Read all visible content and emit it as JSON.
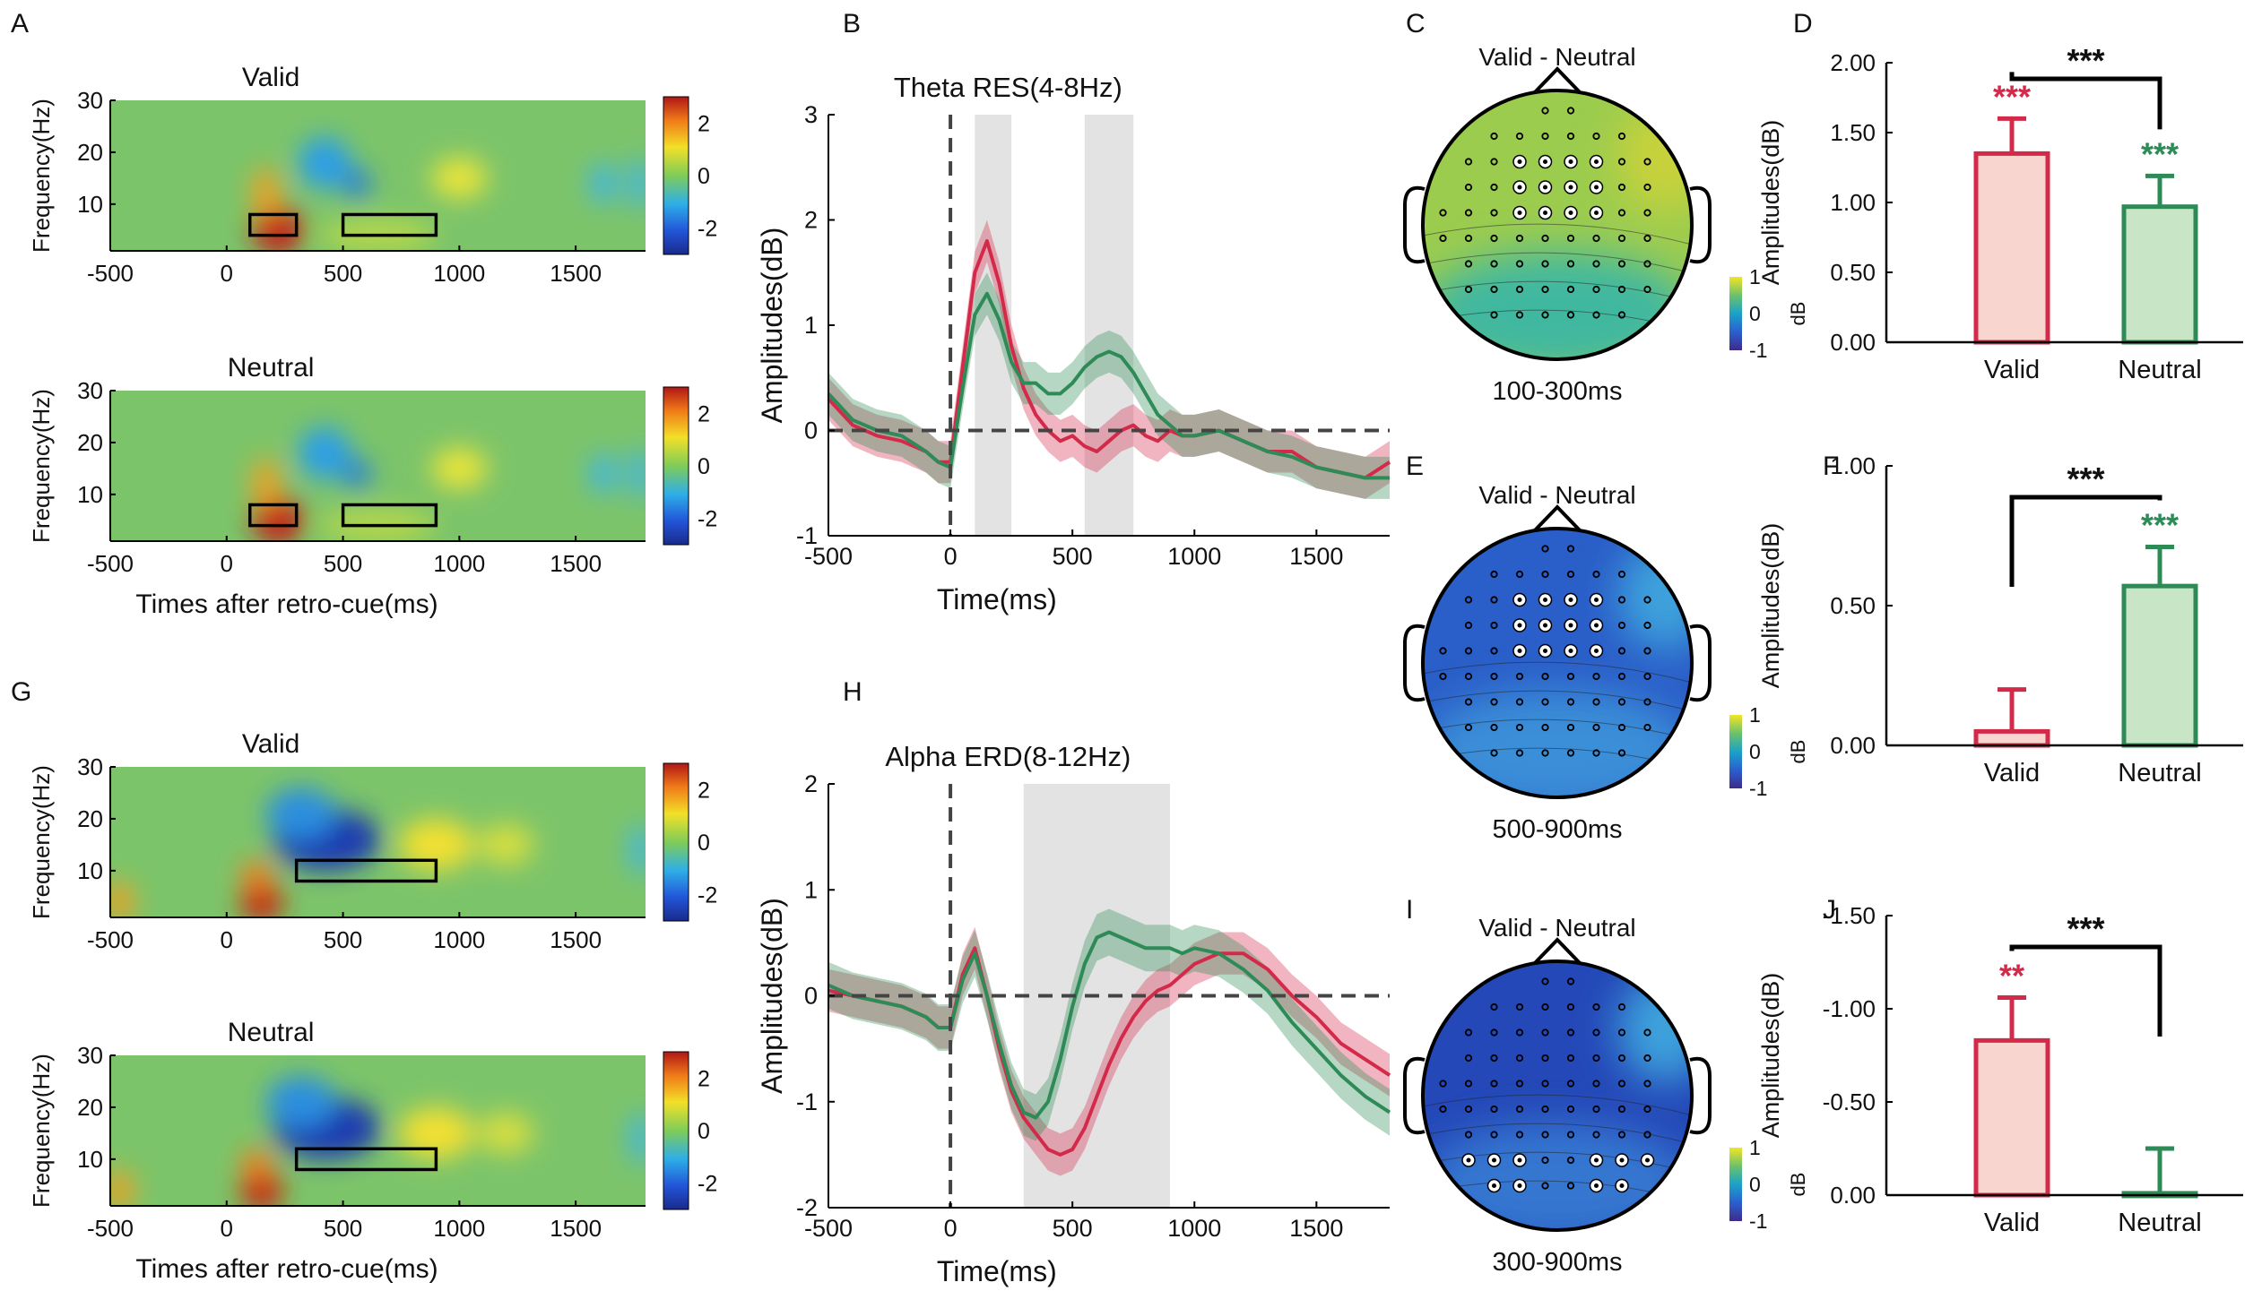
{
  "figure": {
    "panel_letters": [
      "A",
      "B",
      "C",
      "D",
      "E",
      "F",
      "G",
      "H",
      "I",
      "J"
    ],
    "tf_xlabel": "Times after retro-cue(ms)",
    "tf_ylabel": "Frequency(Hz)",
    "dB_label": "dB",
    "contrast_label": "Valid - Neutral"
  },
  "chart_data": [
    {
      "panel": "A",
      "type": "heatmap",
      "title": "Valid",
      "band": "theta",
      "xlabel": "Times after retro-cue(ms)",
      "ylabel": "Frequency(Hz)",
      "xlim": [
        -500,
        1800
      ],
      "ylim": [
        1,
        30
      ],
      "xticks": [
        "-500",
        "0",
        "500",
        "1000",
        "1500"
      ],
      "yticks": [
        "10",
        "20",
        "30"
      ],
      "colorbar": {
        "range": [
          -3,
          3
        ],
        "ticks": [
          "2",
          "0",
          "-2"
        ]
      },
      "rois": [
        {
          "t": [
            100,
            300
          ],
          "f": [
            4,
            8
          ]
        },
        {
          "t": [
            500,
            900
          ],
          "f": [
            4,
            8
          ]
        }
      ]
    },
    {
      "panel": "A",
      "type": "heatmap",
      "title": "Neutral",
      "band": "theta",
      "xlabel": "Times after retro-cue(ms)",
      "ylabel": "Frequency(Hz)",
      "xlim": [
        -500,
        1800
      ],
      "ylim": [
        1,
        30
      ],
      "xticks": [
        "-500",
        "0",
        "500",
        "1000",
        "1500"
      ],
      "yticks": [
        "10",
        "20",
        "30"
      ],
      "colorbar": {
        "range": [
          -3,
          3
        ],
        "ticks": [
          "2",
          "0",
          "-2"
        ]
      },
      "rois": [
        {
          "t": [
            100,
            300
          ],
          "f": [
            4,
            8
          ]
        },
        {
          "t": [
            500,
            900
          ],
          "f": [
            4,
            8
          ]
        }
      ]
    },
    {
      "panel": "B",
      "type": "line",
      "title": "Theta RES(4-8Hz)",
      "xlabel": "Time(ms)",
      "ylabel": "Amplitudes(dB)",
      "xlim": [
        -500,
        1800
      ],
      "ylim": [
        -1,
        3
      ],
      "xticks": [
        "-500",
        "0",
        "500",
        "1000",
        "1500"
      ],
      "yticks": [
        "-1",
        "0",
        "1",
        "2",
        "3"
      ],
      "windows": [
        [
          100,
          250
        ],
        [
          550,
          750
        ]
      ],
      "series": [
        {
          "name": "Valid",
          "color": "#d42a4a",
          "x": [
            -500,
            -400,
            -300,
            -200,
            -100,
            -50,
            0,
            50,
            100,
            150,
            200,
            250,
            300,
            350,
            400,
            450,
            500,
            550,
            600,
            650,
            700,
            750,
            800,
            850,
            900,
            950,
            1000,
            1100,
            1200,
            1300,
            1400,
            1500,
            1600,
            1700,
            1800
          ],
          "y": [
            0.3,
            0.05,
            -0.05,
            -0.1,
            -0.2,
            -0.3,
            -0.3,
            0.6,
            1.5,
            1.8,
            1.4,
            0.8,
            0.4,
            0.15,
            0.0,
            -0.1,
            -0.05,
            -0.15,
            -0.2,
            -0.1,
            0.0,
            0.05,
            -0.05,
            -0.1,
            0.0,
            -0.05,
            -0.05,
            0.0,
            -0.1,
            -0.2,
            -0.2,
            -0.35,
            -0.4,
            -0.45,
            -0.3
          ],
          "se": 0.2
        },
        {
          "name": "Neutral",
          "color": "#2e8b57",
          "x": [
            -500,
            -400,
            -300,
            -200,
            -100,
            -50,
            0,
            50,
            100,
            150,
            200,
            250,
            300,
            350,
            400,
            450,
            500,
            550,
            600,
            650,
            700,
            750,
            800,
            850,
            900,
            950,
            1000,
            1100,
            1200,
            1300,
            1400,
            1500,
            1600,
            1700,
            1800
          ],
          "y": [
            0.35,
            0.1,
            0.0,
            -0.05,
            -0.2,
            -0.3,
            -0.35,
            0.4,
            1.1,
            1.3,
            1.05,
            0.65,
            0.45,
            0.45,
            0.35,
            0.35,
            0.45,
            0.6,
            0.7,
            0.75,
            0.7,
            0.55,
            0.35,
            0.15,
            0.05,
            -0.05,
            -0.05,
            0.0,
            -0.1,
            -0.2,
            -0.25,
            -0.35,
            -0.4,
            -0.45,
            -0.45
          ],
          "se": 0.2
        }
      ]
    },
    {
      "panel": "C",
      "type": "topomap",
      "title": "Valid - Neutral",
      "window": "100-300ms",
      "colorbar": {
        "range": [
          -1,
          1
        ],
        "ticks": [
          "1",
          "0",
          "-1"
        ],
        "unit": "dB"
      },
      "level": 0.35,
      "highlighted": "fronto-central"
    },
    {
      "panel": "D",
      "type": "bar",
      "categories": [
        "Valid",
        "Neutral"
      ],
      "values": [
        1.35,
        0.97
      ],
      "errors": [
        0.25,
        0.22
      ],
      "ylabel": "Amplitudes(dB)",
      "ylim": [
        0,
        2.0
      ],
      "yticks": [
        "2.00",
        "1.50",
        "1.00",
        "0.50",
        "0.00"
      ],
      "bar_labels": [
        "***",
        "***"
      ],
      "comparison": "***"
    },
    {
      "panel": "E",
      "type": "topomap",
      "title": "Valid - Neutral",
      "window": "500-900ms",
      "colorbar": {
        "range": [
          -1,
          1
        ],
        "ticks": [
          "1",
          "0",
          "-1"
        ],
        "unit": "dB"
      },
      "level": -0.7,
      "highlighted": "fronto-central"
    },
    {
      "panel": "F",
      "type": "bar",
      "categories": [
        "Valid",
        "Neutral"
      ],
      "values": [
        0.05,
        0.57
      ],
      "errors": [
        0.15,
        0.14
      ],
      "ylabel": "Amplitudes(dB)",
      "ylim": [
        0,
        1.0
      ],
      "yticks": [
        "1.00",
        "0.50",
        "0.00"
      ],
      "bar_labels": [
        "",
        "***"
      ],
      "comparison": "***"
    },
    {
      "panel": "G",
      "type": "heatmap",
      "title": "Valid",
      "band": "alpha",
      "xlabel": "Times after retro-cue(ms)",
      "ylabel": "Frequency(Hz)",
      "xlim": [
        -500,
        1800
      ],
      "ylim": [
        1,
        30
      ],
      "xticks": [
        "-500",
        "0",
        "500",
        "1000",
        "1500"
      ],
      "yticks": [
        "10",
        "20",
        "30"
      ],
      "colorbar": {
        "range": [
          -3,
          3
        ],
        "ticks": [
          "2",
          "0",
          "-2"
        ]
      },
      "rois": [
        {
          "t": [
            300,
            900
          ],
          "f": [
            8,
            12
          ]
        }
      ]
    },
    {
      "panel": "G",
      "type": "heatmap",
      "title": "Neutral",
      "band": "alpha",
      "xlabel": "Times after retro-cue(ms)",
      "ylabel": "Frequency(Hz)",
      "xlim": [
        -500,
        1800
      ],
      "ylim": [
        1,
        30
      ],
      "xticks": [
        "-500",
        "0",
        "500",
        "1000",
        "1500"
      ],
      "yticks": [
        "10",
        "20",
        "30"
      ],
      "colorbar": {
        "range": [
          -3,
          3
        ],
        "ticks": [
          "2",
          "0",
          "-2"
        ]
      },
      "rois": [
        {
          "t": [
            300,
            900
          ],
          "f": [
            8,
            12
          ]
        }
      ]
    },
    {
      "panel": "H",
      "type": "line",
      "title": "Alpha ERD(8-12Hz)",
      "xlabel": "Time(ms)",
      "ylabel": "Amplitudes(dB)",
      "xlim": [
        -500,
        1800
      ],
      "ylim": [
        -2,
        2
      ],
      "xticks": [
        "-500",
        "0",
        "500",
        "1000",
        "1500"
      ],
      "yticks": [
        "-2",
        "-1",
        "0",
        "1",
        "2"
      ],
      "windows": [
        [
          300,
          900
        ]
      ],
      "series": [
        {
          "name": "Valid",
          "color": "#d42a4a",
          "x": [
            -500,
            -400,
            -300,
            -200,
            -100,
            -50,
            0,
            50,
            100,
            150,
            200,
            250,
            300,
            350,
            400,
            450,
            500,
            550,
            600,
            650,
            700,
            750,
            800,
            850,
            900,
            950,
            1000,
            1100,
            1200,
            1300,
            1400,
            1500,
            1600,
            1700,
            1800
          ],
          "y": [
            0.05,
            0.0,
            -0.05,
            -0.1,
            -0.2,
            -0.3,
            -0.3,
            0.2,
            0.45,
            0.0,
            -0.5,
            -0.9,
            -1.15,
            -1.3,
            -1.45,
            -1.5,
            -1.45,
            -1.25,
            -0.95,
            -0.65,
            -0.4,
            -0.2,
            -0.05,
            0.05,
            0.1,
            0.2,
            0.3,
            0.4,
            0.4,
            0.25,
            0.0,
            -0.2,
            -0.45,
            -0.6,
            -0.75
          ],
          "se": 0.2
        },
        {
          "name": "Neutral",
          "color": "#2e8b57",
          "x": [
            -500,
            -400,
            -300,
            -200,
            -100,
            -50,
            0,
            50,
            100,
            150,
            200,
            250,
            300,
            350,
            400,
            450,
            500,
            550,
            600,
            650,
            700,
            750,
            800,
            850,
            900,
            950,
            1000,
            1100,
            1200,
            1300,
            1400,
            1500,
            1600,
            1700,
            1800
          ],
          "y": [
            0.1,
            0.0,
            -0.05,
            -0.1,
            -0.2,
            -0.3,
            -0.3,
            0.15,
            0.4,
            0.0,
            -0.45,
            -0.85,
            -1.1,
            -1.15,
            -1.0,
            -0.6,
            -0.1,
            0.3,
            0.55,
            0.6,
            0.55,
            0.5,
            0.45,
            0.45,
            0.45,
            0.4,
            0.45,
            0.4,
            0.25,
            0.05,
            -0.25,
            -0.5,
            -0.75,
            -0.95,
            -1.1
          ],
          "se": 0.22
        }
      ]
    },
    {
      "panel": "I",
      "type": "topomap",
      "title": "Valid - Neutral",
      "window": "300-900ms",
      "colorbar": {
        "range": [
          -1,
          1
        ],
        "ticks": [
          "1",
          "0",
          "-1"
        ],
        "unit": "dB"
      },
      "level": -0.75,
      "highlighted": "parieto-occipital"
    },
    {
      "panel": "J",
      "type": "bar",
      "categories": [
        "Valid",
        "Neutral"
      ],
      "values": [
        -0.83,
        -0.01
      ],
      "errors": [
        0.23,
        0.24
      ],
      "ylabel": "Amplitudes(dB)",
      "ylim": [
        0,
        -1.5
      ],
      "inverted": true,
      "yticks": [
        "-1.50",
        "-1.00",
        "-0.50",
        "0.00"
      ],
      "bar_labels": [
        "**",
        ""
      ],
      "comparison": "***"
    }
  ]
}
